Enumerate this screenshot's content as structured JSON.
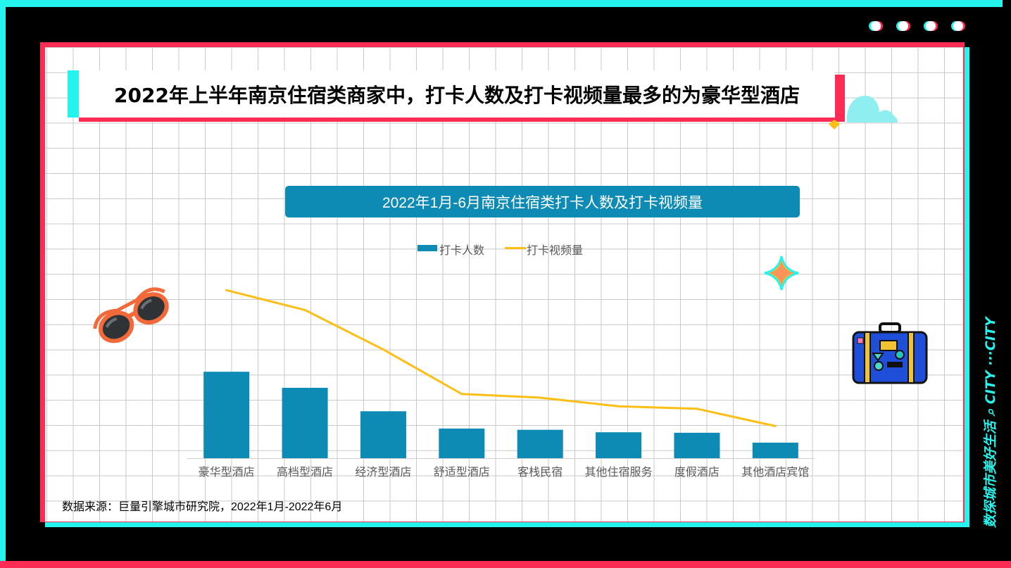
{
  "headline": "2022年上半年南京住宿类商家中，打卡人数及打卡视频量最多的为豪华型酒店",
  "side_caption": "数探城市美好生活 ⌕ CITY ···CITY",
  "source_note": "数据来源：巨量引擎城市研究院，2022年1月-2022年6月",
  "colors": {
    "bar": "#0E8BB5",
    "line": "#FDBE16",
    "cyan": "#25F4EE",
    "pink": "#FE2C55"
  },
  "chart_data": {
    "type": "bar",
    "title": "2022年1月-6月南京住宿类打卡人数及打卡视频量",
    "categories": [
      "豪华型酒店",
      "高档型酒店",
      "经济型酒店",
      "舒适型酒店",
      "客栈民宿",
      "其他住宿服务",
      "度假酒店",
      "其他酒店宾馆"
    ],
    "series": [
      {
        "name": "打卡人数",
        "type": "bar",
        "values": [
          35,
          28.5,
          19,
          12,
          11.5,
          10.5,
          10.3,
          6.3
        ]
      },
      {
        "name": "打卡视频量",
        "type": "line",
        "values": [
          68,
          60,
          44,
          26,
          24.5,
          21,
          20,
          13
        ]
      }
    ],
    "ylim": [
      0,
      100
    ],
    "axis_values_shown": false,
    "legend_position": "top"
  }
}
